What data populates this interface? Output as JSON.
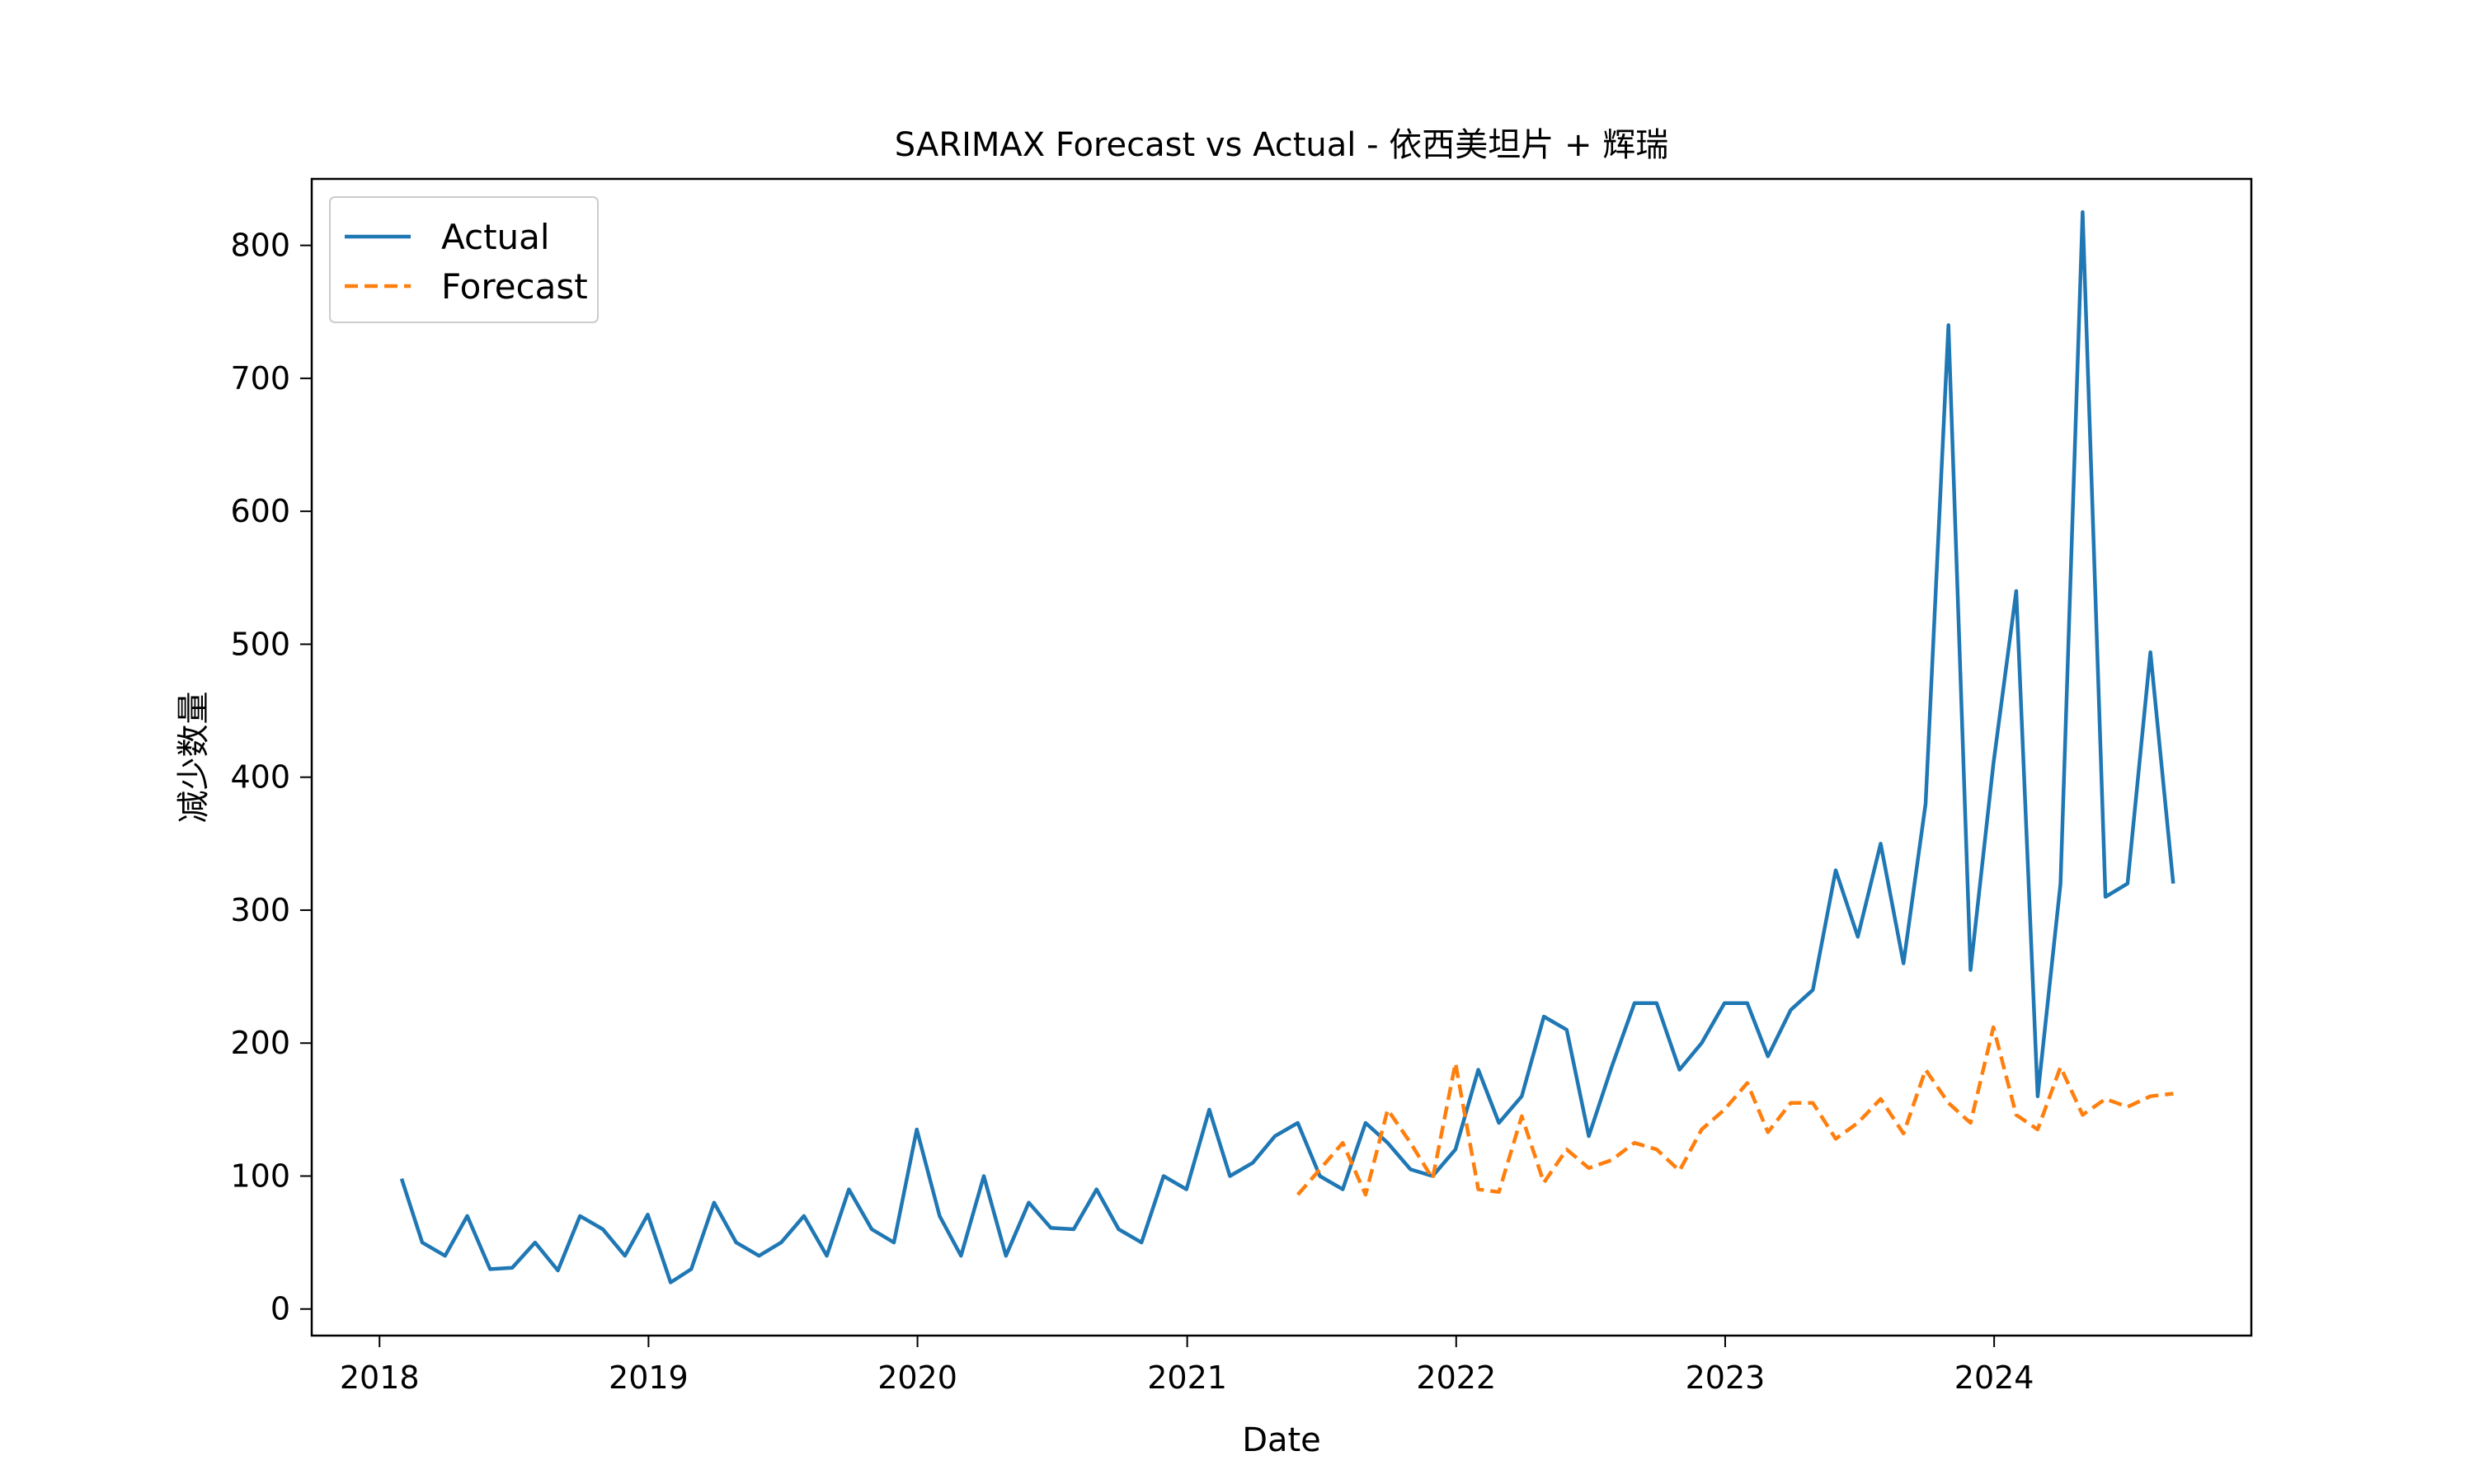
{
  "chart_data": {
    "type": "line",
    "title": "SARIMAX Forecast vs Actual - 依西美坦片 + 辉瑞",
    "xlabel": "Date",
    "ylabel": "减少数量",
    "xlim": [
      "2017-10-01",
      "2024-12-15"
    ],
    "ylim": [
      -20,
      850
    ],
    "x_ticks": [
      "2018",
      "2019",
      "2020",
      "2021",
      "2022",
      "2023",
      "2024"
    ],
    "y_ticks": [
      0,
      100,
      200,
      300,
      400,
      500,
      600,
      700,
      800
    ],
    "legend": {
      "placement": "upper-left"
    },
    "grid": false,
    "series": [
      {
        "name": "Actual",
        "color": "#1f77b4",
        "style": "solid",
        "x": [
          "2018-01-31",
          "2018-02-28",
          "2018-03-31",
          "2018-04-30",
          "2018-05-31",
          "2018-06-30",
          "2018-07-31",
          "2018-08-31",
          "2018-09-30",
          "2018-10-31",
          "2018-11-30",
          "2018-12-31",
          "2019-01-31",
          "2019-02-28",
          "2019-03-31",
          "2019-04-30",
          "2019-05-31",
          "2019-06-30",
          "2019-07-31",
          "2019-08-31",
          "2019-09-30",
          "2019-10-31",
          "2019-11-30",
          "2019-12-31",
          "2020-01-31",
          "2020-02-29",
          "2020-03-31",
          "2020-04-30",
          "2020-05-31",
          "2020-06-30",
          "2020-07-31",
          "2020-08-31",
          "2020-09-30",
          "2020-10-31",
          "2020-11-30",
          "2020-12-31",
          "2021-01-31",
          "2021-02-28",
          "2021-03-31",
          "2021-04-30",
          "2021-05-31",
          "2021-06-30",
          "2021-07-31",
          "2021-08-31",
          "2021-09-30",
          "2021-10-31",
          "2021-11-30",
          "2021-12-31",
          "2022-01-31",
          "2022-02-28",
          "2022-03-31",
          "2022-04-30",
          "2022-05-31",
          "2022-06-30",
          "2022-07-31",
          "2022-08-31",
          "2022-09-30",
          "2022-10-31",
          "2022-11-30",
          "2022-12-31",
          "2023-01-31",
          "2023-02-28",
          "2023-03-31",
          "2023-04-30",
          "2023-05-31",
          "2023-06-30",
          "2023-07-31",
          "2023-08-31",
          "2023-09-30",
          "2023-10-31",
          "2023-11-30",
          "2023-12-31",
          "2024-01-31",
          "2024-02-29",
          "2024-03-31",
          "2024-04-30",
          "2024-05-31",
          "2024-06-30",
          "2024-07-31",
          "2024-08-31"
        ],
        "y": [
          98,
          50,
          40,
          70,
          30,
          31,
          50,
          29,
          70,
          60,
          40,
          71,
          20,
          30,
          80,
          50,
          40,
          50,
          70,
          40,
          90,
          60,
          50,
          135,
          70,
          40,
          100,
          40,
          80,
          61,
          60,
          90,
          60,
          50,
          100,
          90,
          150,
          100,
          110,
          130,
          140,
          100,
          90,
          140,
          125,
          105,
          100,
          120,
          180,
          140,
          160,
          220,
          210,
          130,
          182,
          230,
          230,
          180,
          200,
          230,
          230,
          190,
          225,
          240,
          330,
          280,
          350,
          260,
          380,
          740,
          255,
          410,
          540,
          160,
          320,
          825,
          310,
          320,
          494,
          320
        ]
      },
      {
        "name": "Forecast",
        "color": "#ff7f0e",
        "style": "dashed",
        "x": [
          "2021-05-31",
          "2021-06-30",
          "2021-07-31",
          "2021-08-31",
          "2021-09-30",
          "2021-10-31",
          "2021-11-30",
          "2021-12-31",
          "2022-01-31",
          "2022-02-28",
          "2022-03-31",
          "2022-04-30",
          "2022-05-31",
          "2022-06-30",
          "2022-07-31",
          "2022-08-31",
          "2022-09-30",
          "2022-10-31",
          "2022-11-30",
          "2022-12-31",
          "2023-01-31",
          "2023-02-28",
          "2023-03-31",
          "2023-04-30",
          "2023-05-31",
          "2023-06-30",
          "2023-07-31",
          "2023-08-31",
          "2023-09-30",
          "2023-10-31",
          "2023-11-30",
          "2023-12-31",
          "2024-01-31",
          "2024-02-29",
          "2024-03-31",
          "2024-04-30",
          "2024-05-31",
          "2024-06-30",
          "2024-07-31",
          "2024-08-31"
        ],
        "y": [
          86,
          105,
          125,
          86,
          150,
          125,
          98,
          185,
          90,
          88,
          145,
          95,
          120,
          106,
          112,
          125,
          120,
          104,
          135,
          150,
          170,
          133,
          155,
          155,
          128,
          140,
          158,
          132,
          180,
          155,
          140,
          212,
          146,
          135,
          182,
          146,
          158,
          152,
          160,
          162
        ]
      }
    ]
  }
}
